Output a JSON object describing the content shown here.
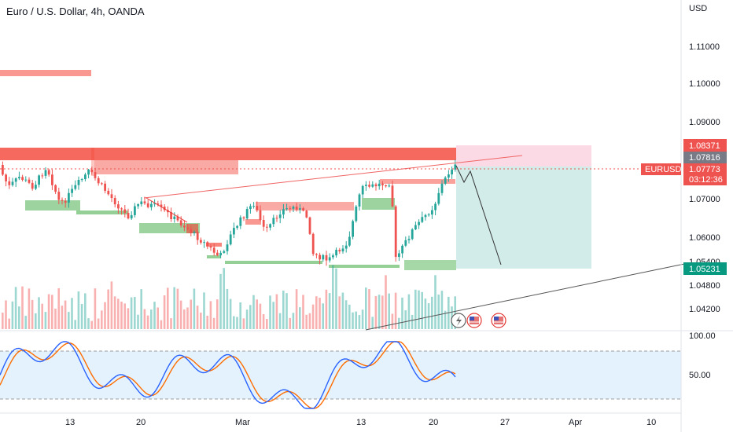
{
  "header": {
    "symbol_title": "Euro / U.S. Dollar, 4h, OANDA"
  },
  "price_axis": {
    "currency": "USD",
    "ticks": [
      "1.11000",
      "1.10000",
      "1.09000",
      "1.08371",
      "1.07816",
      "1.07773",
      "1.07000",
      "1.06000",
      "1.05400",
      "1.05231",
      "1.04800",
      "1.04200"
    ]
  },
  "price_tags": {
    "upper": "1.08371",
    "entry": "1.07816",
    "current": "1.07773",
    "countdown": "03:12:36",
    "symbol": "EURUSD",
    "target": "1.05231"
  },
  "oscillator_axis": {
    "ticks": [
      "100.00",
      "50.00"
    ]
  },
  "time_axis": {
    "labels": [
      "13",
      "20",
      "Mar",
      "13",
      "20",
      "27",
      "Apr",
      "10"
    ]
  },
  "markers": {
    "flash_icon": "lightning-icon",
    "flag_icon": "us-flag-icon"
  },
  "colors": {
    "up": "#26a69a",
    "down": "#ef5350",
    "supply_zone": "#f44336",
    "demand_zone": "#4caf50",
    "stoch_k": "#2962ff",
    "stoch_d": "#ff6d00",
    "osc_band": "#e3f2fd"
  }
}
